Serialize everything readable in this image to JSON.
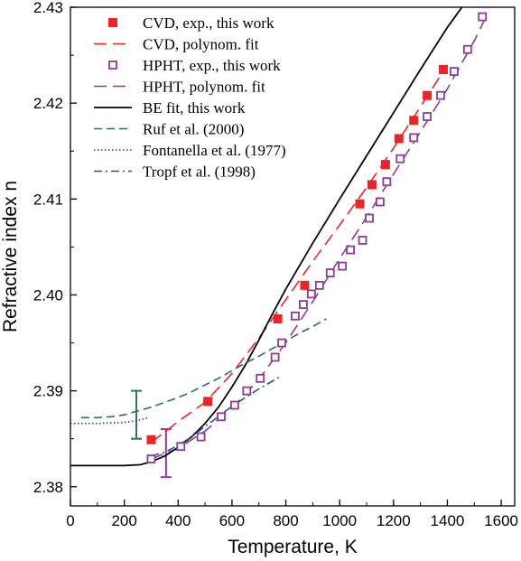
{
  "chart_data": {
    "type": "scatter",
    "xlabel": "Temperature,  K",
    "ylabel": "Refractive index n",
    "xlim": [
      0,
      1650
    ],
    "ylim": [
      2.378,
      2.43
    ],
    "xticks": [
      0,
      200,
      400,
      600,
      800,
      1000,
      1200,
      1400,
      1600
    ],
    "yticks": [
      2.38,
      2.39,
      2.4,
      2.41,
      2.42,
      2.43
    ],
    "ytick_labels": [
      "2.38",
      "2.39",
      "2.40",
      "2.41",
      "2.42",
      "2.43"
    ],
    "grid": false,
    "legend_position": "top-center",
    "series": [
      {
        "name": "CVD, exp., this work",
        "kind": "markers",
        "marker": "filled-square",
        "color": "#e8262a",
        "x": [
          300,
          510,
          770,
          870,
          1075,
          1120,
          1170,
          1220,
          1275,
          1325,
          1385
        ],
        "y": [
          2.3849,
          2.3889,
          2.3975,
          2.401,
          2.4095,
          2.4115,
          2.4136,
          2.4163,
          2.4182,
          2.4208,
          2.4235
        ]
      },
      {
        "name": "CVD, polynom. fit",
        "kind": "line",
        "dash": "long-dash",
        "color": "#e8262a",
        "x": [
          300,
          400,
          500,
          600,
          700,
          800,
          900,
          1000,
          1100,
          1200,
          1300,
          1400
        ],
        "y": [
          2.3846,
          2.3868,
          2.3888,
          2.3918,
          2.3955,
          2.3995,
          2.4035,
          2.4073,
          2.4112,
          2.4153,
          2.4196,
          2.424
        ]
      },
      {
        "name": "HPHT, exp., this work",
        "kind": "markers",
        "marker": "open-square",
        "color": "#8e3a96",
        "x": [
          300,
          410,
          485,
          560,
          610,
          655,
          705,
          760,
          785,
          835,
          865,
          895,
          925,
          965,
          1010,
          1040,
          1085,
          1110,
          1150,
          1175,
          1225,
          1275,
          1325,
          1375,
          1425,
          1475,
          1530
        ],
        "y": [
          2.3829,
          2.3842,
          2.3852,
          2.3873,
          2.3885,
          2.39,
          2.3913,
          2.3935,
          2.395,
          2.3978,
          2.399,
          2.4001,
          2.401,
          2.4023,
          2.403,
          2.4047,
          2.4057,
          2.408,
          2.4097,
          2.4118,
          2.4142,
          2.4164,
          2.4186,
          2.4208,
          2.4233,
          2.4256,
          2.429
        ]
      },
      {
        "name": "HPHT, polynom. fit",
        "kind": "line",
        "dash": "long-dash",
        "color": "#8e3a96",
        "x": [
          300,
          400,
          500,
          600,
          700,
          800,
          900,
          1000,
          1100,
          1200,
          1300,
          1400,
          1500,
          1540
        ],
        "y": [
          2.3829,
          2.384,
          2.3858,
          2.3882,
          2.3912,
          2.395,
          2.3993,
          2.4038,
          2.4081,
          2.4126,
          2.417,
          2.4215,
          2.4265,
          2.4288
        ]
      },
      {
        "name": "BE fit, this work",
        "kind": "line",
        "dash": "solid",
        "color": "#000000",
        "x": [
          0,
          200,
          260,
          300,
          350,
          400,
          450,
          500,
          550,
          600,
          650,
          700,
          750,
          800,
          900,
          1000,
          1100,
          1200,
          1300,
          1400,
          1500,
          1550
        ],
        "y": [
          2.3822,
          2.3822,
          2.3823,
          2.3826,
          2.3832,
          2.3841,
          2.3852,
          2.3866,
          2.3883,
          2.3904,
          2.3927,
          2.3953,
          2.398,
          2.4006,
          2.4054,
          2.41,
          2.4145,
          2.419,
          2.4235,
          2.4279,
          2.4318,
          2.434
        ]
      },
      {
        "name": "Ruf et al. (2000)",
        "kind": "line",
        "dash": "dash",
        "color": "#2f6e5e",
        "x": [
          40,
          100,
          150,
          200,
          250,
          300,
          350,
          400,
          450,
          500,
          550,
          600,
          650,
          700,
          750,
          800,
          850,
          900,
          950
        ],
        "y": [
          2.3872,
          2.3872,
          2.3873,
          2.3875,
          2.3879,
          2.3883,
          2.3888,
          2.3893,
          2.3899,
          2.3906,
          2.3913,
          2.3921,
          2.3929,
          2.3936,
          2.3944,
          2.3952,
          2.396,
          2.3967,
          2.3975
        ]
      },
      {
        "name": "Fontanella et al. (1977)",
        "kind": "line",
        "dash": "dot",
        "color": "#2b3590",
        "x": [
          0,
          100,
          200,
          250,
          290
        ],
        "y": [
          2.3866,
          2.3866,
          2.3867,
          2.3869,
          2.3872
        ]
      },
      {
        "name": "Tropf et al. (1998)",
        "kind": "line",
        "dash": "dash-dot",
        "color": "#1d5a94",
        "x": [
          300,
          350,
          400,
          450,
          500,
          550,
          600,
          650,
          700,
          750,
          780
        ],
        "y": [
          2.3832,
          2.3836,
          2.3843,
          2.3852,
          2.3863,
          2.3873,
          2.3884,
          2.3893,
          2.3902,
          2.391,
          2.3915
        ]
      }
    ],
    "error_bars": [
      {
        "x": 245,
        "y_low": 2.385,
        "y_high": 2.39,
        "color": "#2f6e5e"
      },
      {
        "x": 355,
        "y_low": 2.381,
        "y_high": 2.386,
        "color": "#8e3a96"
      }
    ]
  }
}
